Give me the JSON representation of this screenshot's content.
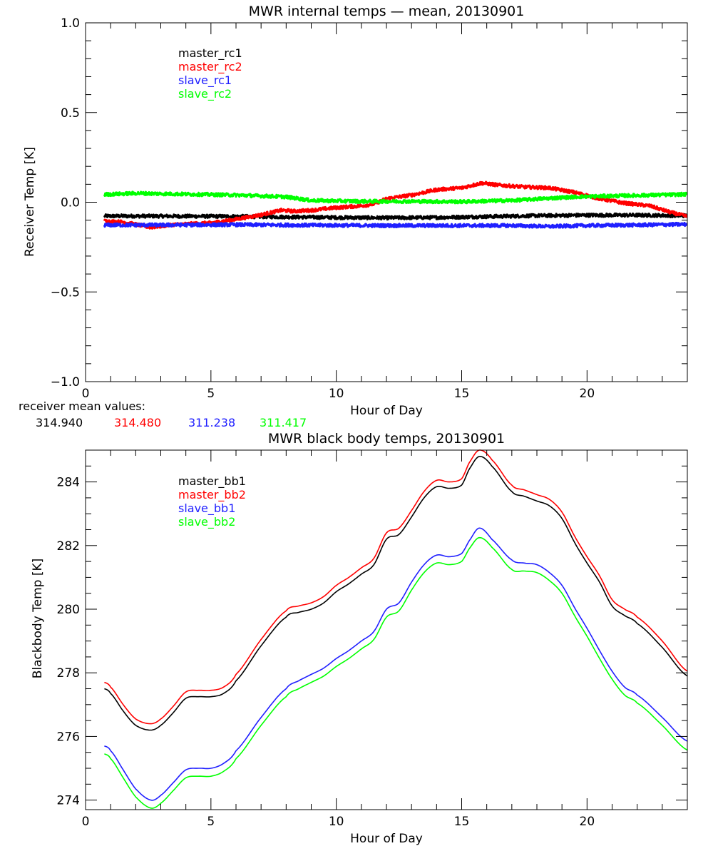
{
  "chart_data": [
    {
      "type": "line",
      "title": "MWR internal temps — mean, 20130901",
      "xlabel": "Hour of Day",
      "ylabel": "Receiver Temp [K]",
      "xlim": [
        0,
        24
      ],
      "ylim": [
        -1.0,
        1.0
      ],
      "x_ticks": [
        0,
        5,
        10,
        15,
        20
      ],
      "x_tick_labels": [
        "0",
        "5",
        "10",
        "15",
        "20"
      ],
      "x_minor_step": 1,
      "y_ticks": [
        -1.0,
        -0.5,
        0.0,
        0.5,
        1.0
      ],
      "y_tick_labels": [
        "−1.0",
        "−0.5",
        "0.0",
        "0.5",
        "1.0"
      ],
      "y_minor_step": 0.1,
      "grid": false,
      "legend_position": "top-left",
      "noisy": true,
      "series": [
        {
          "name": "master_rc1",
          "color": "#000000",
          "x": [
            0.75,
            2,
            4,
            6,
            8,
            10,
            12,
            14,
            16,
            18,
            20,
            22,
            24
          ],
          "y": [
            -0.077,
            -0.077,
            -0.078,
            -0.079,
            -0.082,
            -0.085,
            -0.087,
            -0.085,
            -0.08,
            -0.075,
            -0.072,
            -0.072,
            -0.075
          ]
        },
        {
          "name": "master_rc2",
          "color": "#ff0000",
          "x": [
            0.75,
            1.5,
            2.6,
            3.5,
            5,
            6,
            7,
            7.8,
            8.3,
            9,
            10,
            11,
            11.5,
            12,
            13,
            14,
            15,
            15.8,
            16.5,
            17.5,
            18.5,
            19.5,
            20.5,
            21.5,
            22.5,
            23.3,
            24
          ],
          "y": [
            -0.105,
            -0.11,
            -0.14,
            -0.125,
            -0.115,
            -0.095,
            -0.07,
            -0.045,
            -0.05,
            -0.045,
            -0.03,
            -0.02,
            -0.01,
            0.02,
            0.04,
            0.07,
            0.08,
            0.107,
            0.095,
            0.085,
            0.08,
            0.055,
            0.02,
            -0.005,
            -0.02,
            -0.055,
            -0.08
          ]
        },
        {
          "name": "slave_rc1",
          "color": "#2020ff",
          "x": [
            0.75,
            3,
            6,
            9,
            12,
            15,
            17,
            18.5,
            20,
            22,
            24
          ],
          "y": [
            -0.127,
            -0.127,
            -0.125,
            -0.128,
            -0.13,
            -0.13,
            -0.13,
            -0.135,
            -0.13,
            -0.127,
            -0.123
          ]
        },
        {
          "name": "slave_rc2",
          "color": "#00ff00",
          "x": [
            0.75,
            2,
            4,
            6,
            8,
            9,
            11,
            13,
            15,
            17,
            18,
            19.5,
            21,
            24
          ],
          "y": [
            0.043,
            0.05,
            0.045,
            0.04,
            0.03,
            0.01,
            0.005,
            0.005,
            0.003,
            0.01,
            0.018,
            0.03,
            0.035,
            0.044
          ]
        }
      ],
      "annotation": {
        "label": "receiver mean values:",
        "values": [
          {
            "text": "314.940",
            "color": "#000000"
          },
          {
            "text": "314.480",
            "color": "#ff0000"
          },
          {
            "text": "311.238",
            "color": "#2020ff"
          },
          {
            "text": "311.417",
            "color": "#00ff00"
          }
        ]
      }
    },
    {
      "type": "line",
      "title": "MWR black body temps, 20130901",
      "xlabel": "Hour of Day",
      "ylabel": "Blackbody Temp [K]",
      "xlim": [
        0,
        24
      ],
      "ylim": [
        273.7,
        285.0
      ],
      "x_ticks": [
        0,
        5,
        10,
        15,
        20
      ],
      "x_tick_labels": [
        "0",
        "5",
        "10",
        "15",
        "20"
      ],
      "x_minor_step": 1,
      "y_ticks": [
        274,
        276,
        278,
        280,
        282,
        284
      ],
      "y_tick_labels": [
        "274",
        "276",
        "278",
        "280",
        "282",
        "284"
      ],
      "y_minor_step": 0.5,
      "grid": false,
      "legend_position": "top-left",
      "series": [
        {
          "name": "master_bb1",
          "color": "#000000",
          "x": [
            0.75,
            1.0,
            1.5,
            2.0,
            2.6,
            3.0,
            3.5,
            4.0,
            4.5,
            5.0,
            5.5,
            6.0,
            7.0,
            8.0,
            8.5,
            9.0,
            9.5,
            10.0,
            10.5,
            11.0,
            11.5,
            12.0,
            12.5,
            13.0,
            13.5,
            14.0,
            14.5,
            15.0,
            15.3,
            15.7,
            16.2,
            17.0,
            17.5,
            18.0,
            18.5,
            19.0,
            19.5,
            20.0,
            20.5,
            21.0,
            21.5,
            22.0,
            23.0,
            24.0
          ],
          "y": [
            277.5,
            277.35,
            276.8,
            276.35,
            276.2,
            276.35,
            276.75,
            277.2,
            277.25,
            277.25,
            277.35,
            277.75,
            278.85,
            279.75,
            279.9,
            280.0,
            280.2,
            280.55,
            280.8,
            281.1,
            281.4,
            282.2,
            282.35,
            282.9,
            283.5,
            283.85,
            283.8,
            283.9,
            284.4,
            284.8,
            284.5,
            283.7,
            283.55,
            283.4,
            283.25,
            282.85,
            282.1,
            281.45,
            280.85,
            280.1,
            279.8,
            279.55,
            278.8,
            277.9
          ]
        },
        {
          "name": "master_bb2",
          "color": "#ff0000",
          "x": [
            0.75,
            1.0,
            1.5,
            2.0,
            2.6,
            3.0,
            3.5,
            4.0,
            4.5,
            5.0,
            5.5,
            6.0,
            7.0,
            8.0,
            8.5,
            9.0,
            9.5,
            10.0,
            10.5,
            11.0,
            11.5,
            12.0,
            12.5,
            13.0,
            13.5,
            14.0,
            14.5,
            15.0,
            15.3,
            15.7,
            16.2,
            17.0,
            17.5,
            18.0,
            18.5,
            19.0,
            19.5,
            20.0,
            20.5,
            21.0,
            21.5,
            22.0,
            23.0,
            24.0
          ],
          "y": [
            277.7,
            277.55,
            277.0,
            276.55,
            276.4,
            276.55,
            276.95,
            277.4,
            277.45,
            277.45,
            277.55,
            277.95,
            279.05,
            279.95,
            280.1,
            280.2,
            280.4,
            280.75,
            281.0,
            281.3,
            281.6,
            282.4,
            282.55,
            283.1,
            283.7,
            284.05,
            284.0,
            284.1,
            284.6,
            285.0,
            284.7,
            283.9,
            283.75,
            283.6,
            283.45,
            283.05,
            282.3,
            281.65,
            281.05,
            280.3,
            280.0,
            279.75,
            279.0,
            278.05
          ]
        },
        {
          "name": "slave_bb1",
          "color": "#2020ff",
          "x": [
            0.75,
            1.0,
            1.5,
            2.0,
            2.6,
            3.0,
            3.5,
            4.0,
            4.5,
            5.0,
            5.5,
            6.0,
            7.0,
            8.0,
            8.5,
            9.0,
            9.5,
            10.0,
            10.5,
            11.0,
            11.5,
            12.0,
            12.5,
            13.0,
            13.5,
            14.0,
            14.5,
            15.0,
            15.3,
            15.7,
            16.2,
            17.0,
            17.5,
            18.0,
            18.5,
            19.0,
            19.5,
            20.0,
            20.5,
            21.0,
            21.5,
            22.0,
            23.0,
            24.0
          ],
          "y": [
            275.7,
            275.55,
            274.95,
            274.35,
            274.0,
            274.15,
            274.55,
            274.95,
            275.0,
            275.0,
            275.15,
            275.55,
            276.6,
            277.5,
            277.75,
            277.95,
            278.15,
            278.45,
            278.7,
            279.0,
            279.3,
            280.0,
            280.2,
            280.85,
            281.4,
            281.7,
            281.65,
            281.75,
            282.15,
            282.55,
            282.2,
            281.55,
            281.45,
            281.4,
            281.15,
            280.75,
            280.05,
            279.4,
            278.7,
            278.05,
            277.55,
            277.3,
            276.6,
            275.85
          ]
        },
        {
          "name": "slave_bb2",
          "color": "#00ff00",
          "x": [
            0.75,
            1.0,
            1.5,
            2.0,
            2.6,
            3.0,
            3.5,
            4.0,
            4.5,
            5.0,
            5.5,
            6.0,
            7.0,
            8.0,
            8.5,
            9.0,
            9.5,
            10.0,
            10.5,
            11.0,
            11.5,
            12.0,
            12.5,
            13.0,
            13.5,
            14.0,
            14.5,
            15.0,
            15.3,
            15.7,
            16.2,
            17.0,
            17.5,
            18.0,
            18.5,
            19.0,
            19.5,
            20.0,
            20.5,
            21.0,
            21.5,
            22.0,
            23.0,
            24.0
          ],
          "y": [
            275.45,
            275.3,
            274.7,
            274.1,
            273.75,
            273.9,
            274.3,
            274.7,
            274.75,
            274.75,
            274.9,
            275.3,
            276.35,
            277.25,
            277.5,
            277.7,
            277.9,
            278.2,
            278.45,
            278.75,
            279.05,
            279.75,
            279.95,
            280.6,
            281.15,
            281.45,
            281.4,
            281.5,
            281.9,
            282.25,
            281.95,
            281.25,
            281.2,
            281.15,
            280.9,
            280.5,
            279.8,
            279.15,
            278.45,
            277.8,
            277.3,
            277.05,
            276.35,
            275.57
          ]
        }
      ]
    }
  ]
}
